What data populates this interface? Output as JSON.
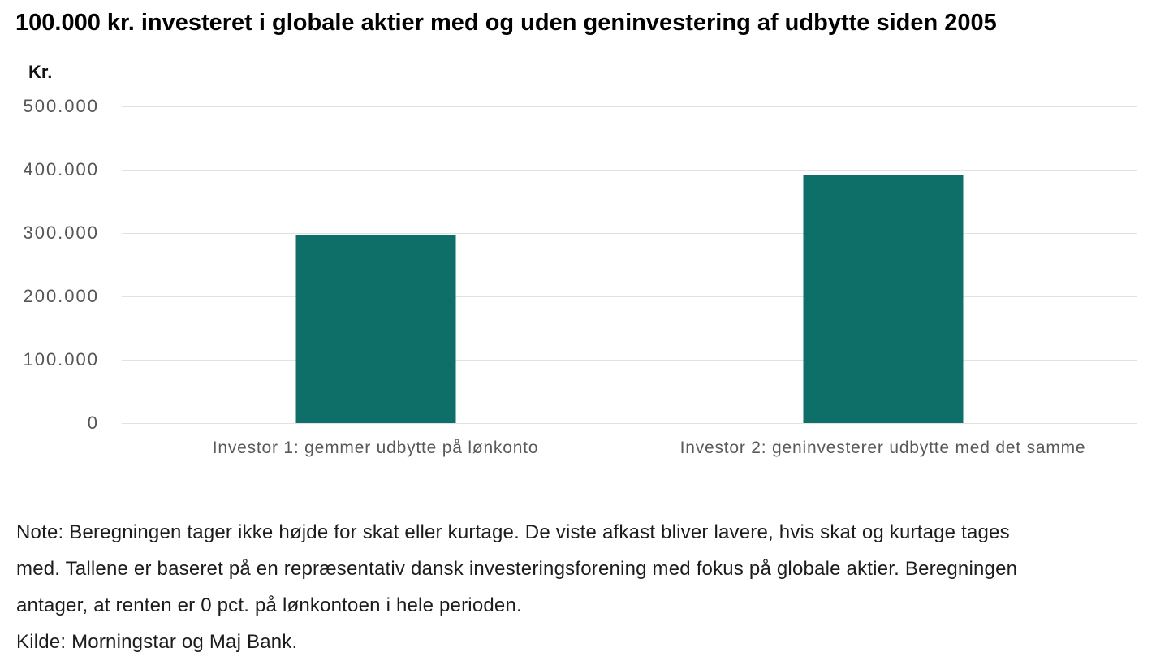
{
  "page": {
    "background": "#ffffff"
  },
  "chart_data": {
    "type": "bar",
    "title": "100.000 kr. investeret i globale aktier med og uden geninvestering af udbytte siden 2005",
    "unit_label": "Kr.",
    "xlabel": "",
    "ylabel": "Kr.",
    "categories": [
      "Investor 1: gemmer udbytte på lønkonto",
      "Investor 2: geninvesterer udbytte med det samme"
    ],
    "values": [
      296000,
      392000
    ],
    "ylim": [
      0,
      500000
    ],
    "yticks": [
      0,
      100000,
      200000,
      300000,
      400000,
      500000
    ],
    "ytick_labels": [
      "0",
      "100.000",
      "200.000",
      "300.000",
      "400.000",
      "500.000"
    ],
    "grid": true,
    "legend_position": "none",
    "bar_color": "#0e6f68",
    "gridline_color": "#e2e2e2",
    "tick_label_color": "#555555",
    "category_label_color": "#595959"
  },
  "notes": {
    "lines": [
      "Note: Beregningen tager ikke højde for skat eller kurtage. De viste afkast bliver lavere, hvis skat og kurtage tages",
      "med. Tallene er baseret på en repræsentativ dansk investeringsforening med fokus på globale aktier. Beregningen",
      "antager, at renten er 0 pct. på lønkontoen i hele perioden.",
      "Kilde: Morningstar og Maj Bank."
    ]
  }
}
